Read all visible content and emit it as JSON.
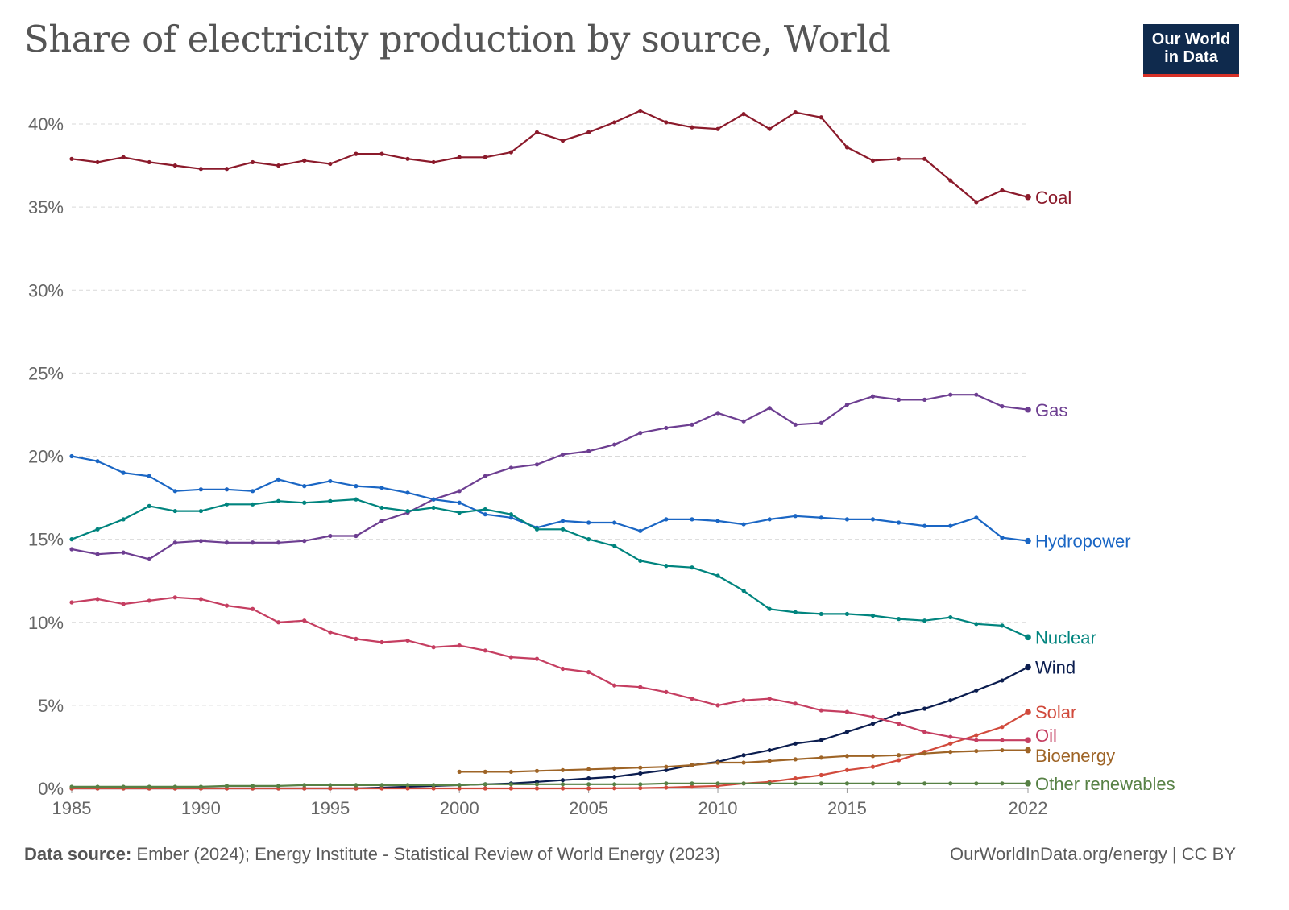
{
  "title": "Share of electricity production by source, World",
  "logo": {
    "line1": "Our World",
    "line2": "in Data"
  },
  "footer": {
    "source_label": "Data source:",
    "source_text": "Ember (2024); Energy Institute - Statistical Review of World Energy (2023)",
    "credit": "OurWorldInData.org/energy | CC BY"
  },
  "chart_data": {
    "type": "line",
    "xlim": [
      1985,
      2022
    ],
    "ylim": [
      0,
      40
    ],
    "y_ticks": [
      0,
      5,
      10,
      15,
      20,
      25,
      30,
      35,
      40
    ],
    "y_tick_labels": [
      "0%",
      "5%",
      "10%",
      "15%",
      "20%",
      "25%",
      "30%",
      "35%",
      "40%"
    ],
    "x_ticks": [
      1985,
      1990,
      1995,
      2000,
      2005,
      2010,
      2015,
      2022
    ],
    "x_tick_labels": [
      "1985",
      "1990",
      "1995",
      "2000",
      "2005",
      "2010",
      "2015",
      "2022"
    ],
    "grid": "horizontal-dashed",
    "legend": "inline-right",
    "series": [
      {
        "name": "Coal",
        "color": "#8b1a2b",
        "label_y": 35.6,
        "start": 1985,
        "values": [
          37.9,
          37.7,
          38.0,
          37.7,
          37.5,
          37.3,
          37.3,
          37.7,
          37.5,
          37.8,
          37.6,
          38.2,
          38.2,
          37.9,
          37.7,
          38.0,
          38.0,
          38.3,
          39.5,
          39.0,
          39.5,
          40.1,
          40.8,
          40.1,
          39.8,
          39.7,
          40.6,
          39.7,
          40.7,
          40.4,
          38.6,
          37.8,
          37.9,
          37.9,
          36.6,
          35.3,
          36.0,
          35.6
        ]
      },
      {
        "name": "Gas",
        "color": "#6d3e91",
        "label_y": 22.8,
        "start": 1985,
        "values": [
          14.4,
          14.1,
          14.2,
          13.8,
          14.8,
          14.9,
          14.8,
          14.8,
          14.8,
          14.9,
          15.2,
          15.2,
          16.1,
          16.6,
          17.4,
          17.9,
          18.8,
          19.3,
          19.5,
          20.1,
          20.3,
          20.7,
          21.4,
          21.7,
          21.9,
          22.6,
          22.1,
          22.9,
          21.9,
          22.0,
          23.1,
          23.6,
          23.4,
          23.4,
          23.7,
          23.7,
          23.0,
          22.8
        ]
      },
      {
        "name": "Hydropower",
        "color": "#1a66c4",
        "label_y": 14.9,
        "start": 1985,
        "values": [
          20.0,
          19.7,
          19.0,
          18.8,
          17.9,
          18.0,
          18.0,
          17.9,
          18.6,
          18.2,
          18.5,
          18.2,
          18.1,
          17.8,
          17.4,
          17.2,
          16.5,
          16.3,
          15.7,
          16.1,
          16.0,
          16.0,
          15.5,
          16.2,
          16.2,
          16.1,
          15.9,
          16.2,
          16.4,
          16.3,
          16.2,
          16.2,
          16.0,
          15.8,
          15.8,
          16.3,
          15.1,
          14.9
        ]
      },
      {
        "name": "Nuclear",
        "color": "#00847e",
        "label_y": 9.1,
        "start": 1985,
        "values": [
          15.0,
          15.6,
          16.2,
          17.0,
          16.7,
          16.7,
          17.1,
          17.1,
          17.3,
          17.2,
          17.3,
          17.4,
          16.9,
          16.7,
          16.9,
          16.6,
          16.8,
          16.5,
          15.6,
          15.6,
          15.0,
          14.6,
          13.7,
          13.4,
          13.3,
          12.8,
          11.9,
          10.8,
          10.6,
          10.5,
          10.5,
          10.4,
          10.2,
          10.1,
          10.3,
          9.9,
          9.8,
          9.1
        ]
      },
      {
        "name": "Wind",
        "color": "#0b1d4f",
        "label_y": 7.3,
        "start": 1985,
        "values": [
          0.0,
          0.0,
          0.0,
          0.0,
          0.0,
          0.0,
          0.0,
          0.0,
          0.0,
          0.0,
          0.0,
          0.0,
          0.05,
          0.1,
          0.15,
          0.2,
          0.25,
          0.3,
          0.4,
          0.5,
          0.6,
          0.7,
          0.9,
          1.1,
          1.4,
          1.6,
          2.0,
          2.3,
          2.7,
          2.9,
          3.4,
          3.9,
          4.5,
          4.8,
          5.3,
          5.9,
          6.5,
          7.3
        ]
      },
      {
        "name": "Solar",
        "color": "#d14a3c",
        "label_y": 4.6,
        "start": 1985,
        "values": [
          0,
          0,
          0,
          0,
          0,
          0,
          0,
          0,
          0,
          0,
          0,
          0,
          0,
          0,
          0,
          0,
          0,
          0,
          0,
          0,
          0,
          0.01,
          0.02,
          0.05,
          0.1,
          0.15,
          0.3,
          0.4,
          0.6,
          0.8,
          1.1,
          1.3,
          1.7,
          2.2,
          2.7,
          3.2,
          3.7,
          4.6
        ]
      },
      {
        "name": "Oil",
        "color": "#c53e61",
        "label_y": 3.2,
        "start": 1985,
        "values": [
          11.2,
          11.4,
          11.1,
          11.3,
          11.5,
          11.4,
          11.0,
          10.8,
          10.0,
          10.1,
          9.4,
          9.0,
          8.8,
          8.9,
          8.5,
          8.6,
          8.3,
          7.9,
          7.8,
          7.2,
          7.0,
          6.2,
          6.1,
          5.8,
          5.4,
          5.0,
          5.3,
          5.4,
          5.1,
          4.7,
          4.6,
          4.3,
          3.9,
          3.4,
          3.1,
          2.9,
          2.9,
          2.9
        ]
      },
      {
        "name": "Bioenergy",
        "color": "#9e6426",
        "label_y": 2.0,
        "start": 2000,
        "values": [
          1.0,
          1.0,
          1.0,
          1.05,
          1.1,
          1.15,
          1.2,
          1.25,
          1.3,
          1.4,
          1.55,
          1.55,
          1.65,
          1.75,
          1.85,
          1.95,
          1.95,
          2.0,
          2.1,
          2.2,
          2.25,
          2.3,
          2.3
        ]
      },
      {
        "name": "Other renewables",
        "color": "#578145",
        "label_y": 0.3,
        "start": 1985,
        "values": [
          0.1,
          0.1,
          0.1,
          0.1,
          0.1,
          0.1,
          0.15,
          0.15,
          0.15,
          0.2,
          0.2,
          0.2,
          0.2,
          0.2,
          0.2,
          0.2,
          0.25,
          0.25,
          0.25,
          0.25,
          0.25,
          0.25,
          0.25,
          0.3,
          0.3,
          0.3,
          0.3,
          0.3,
          0.3,
          0.3,
          0.3,
          0.3,
          0.3,
          0.3,
          0.3,
          0.3,
          0.3,
          0.3
        ]
      }
    ]
  }
}
